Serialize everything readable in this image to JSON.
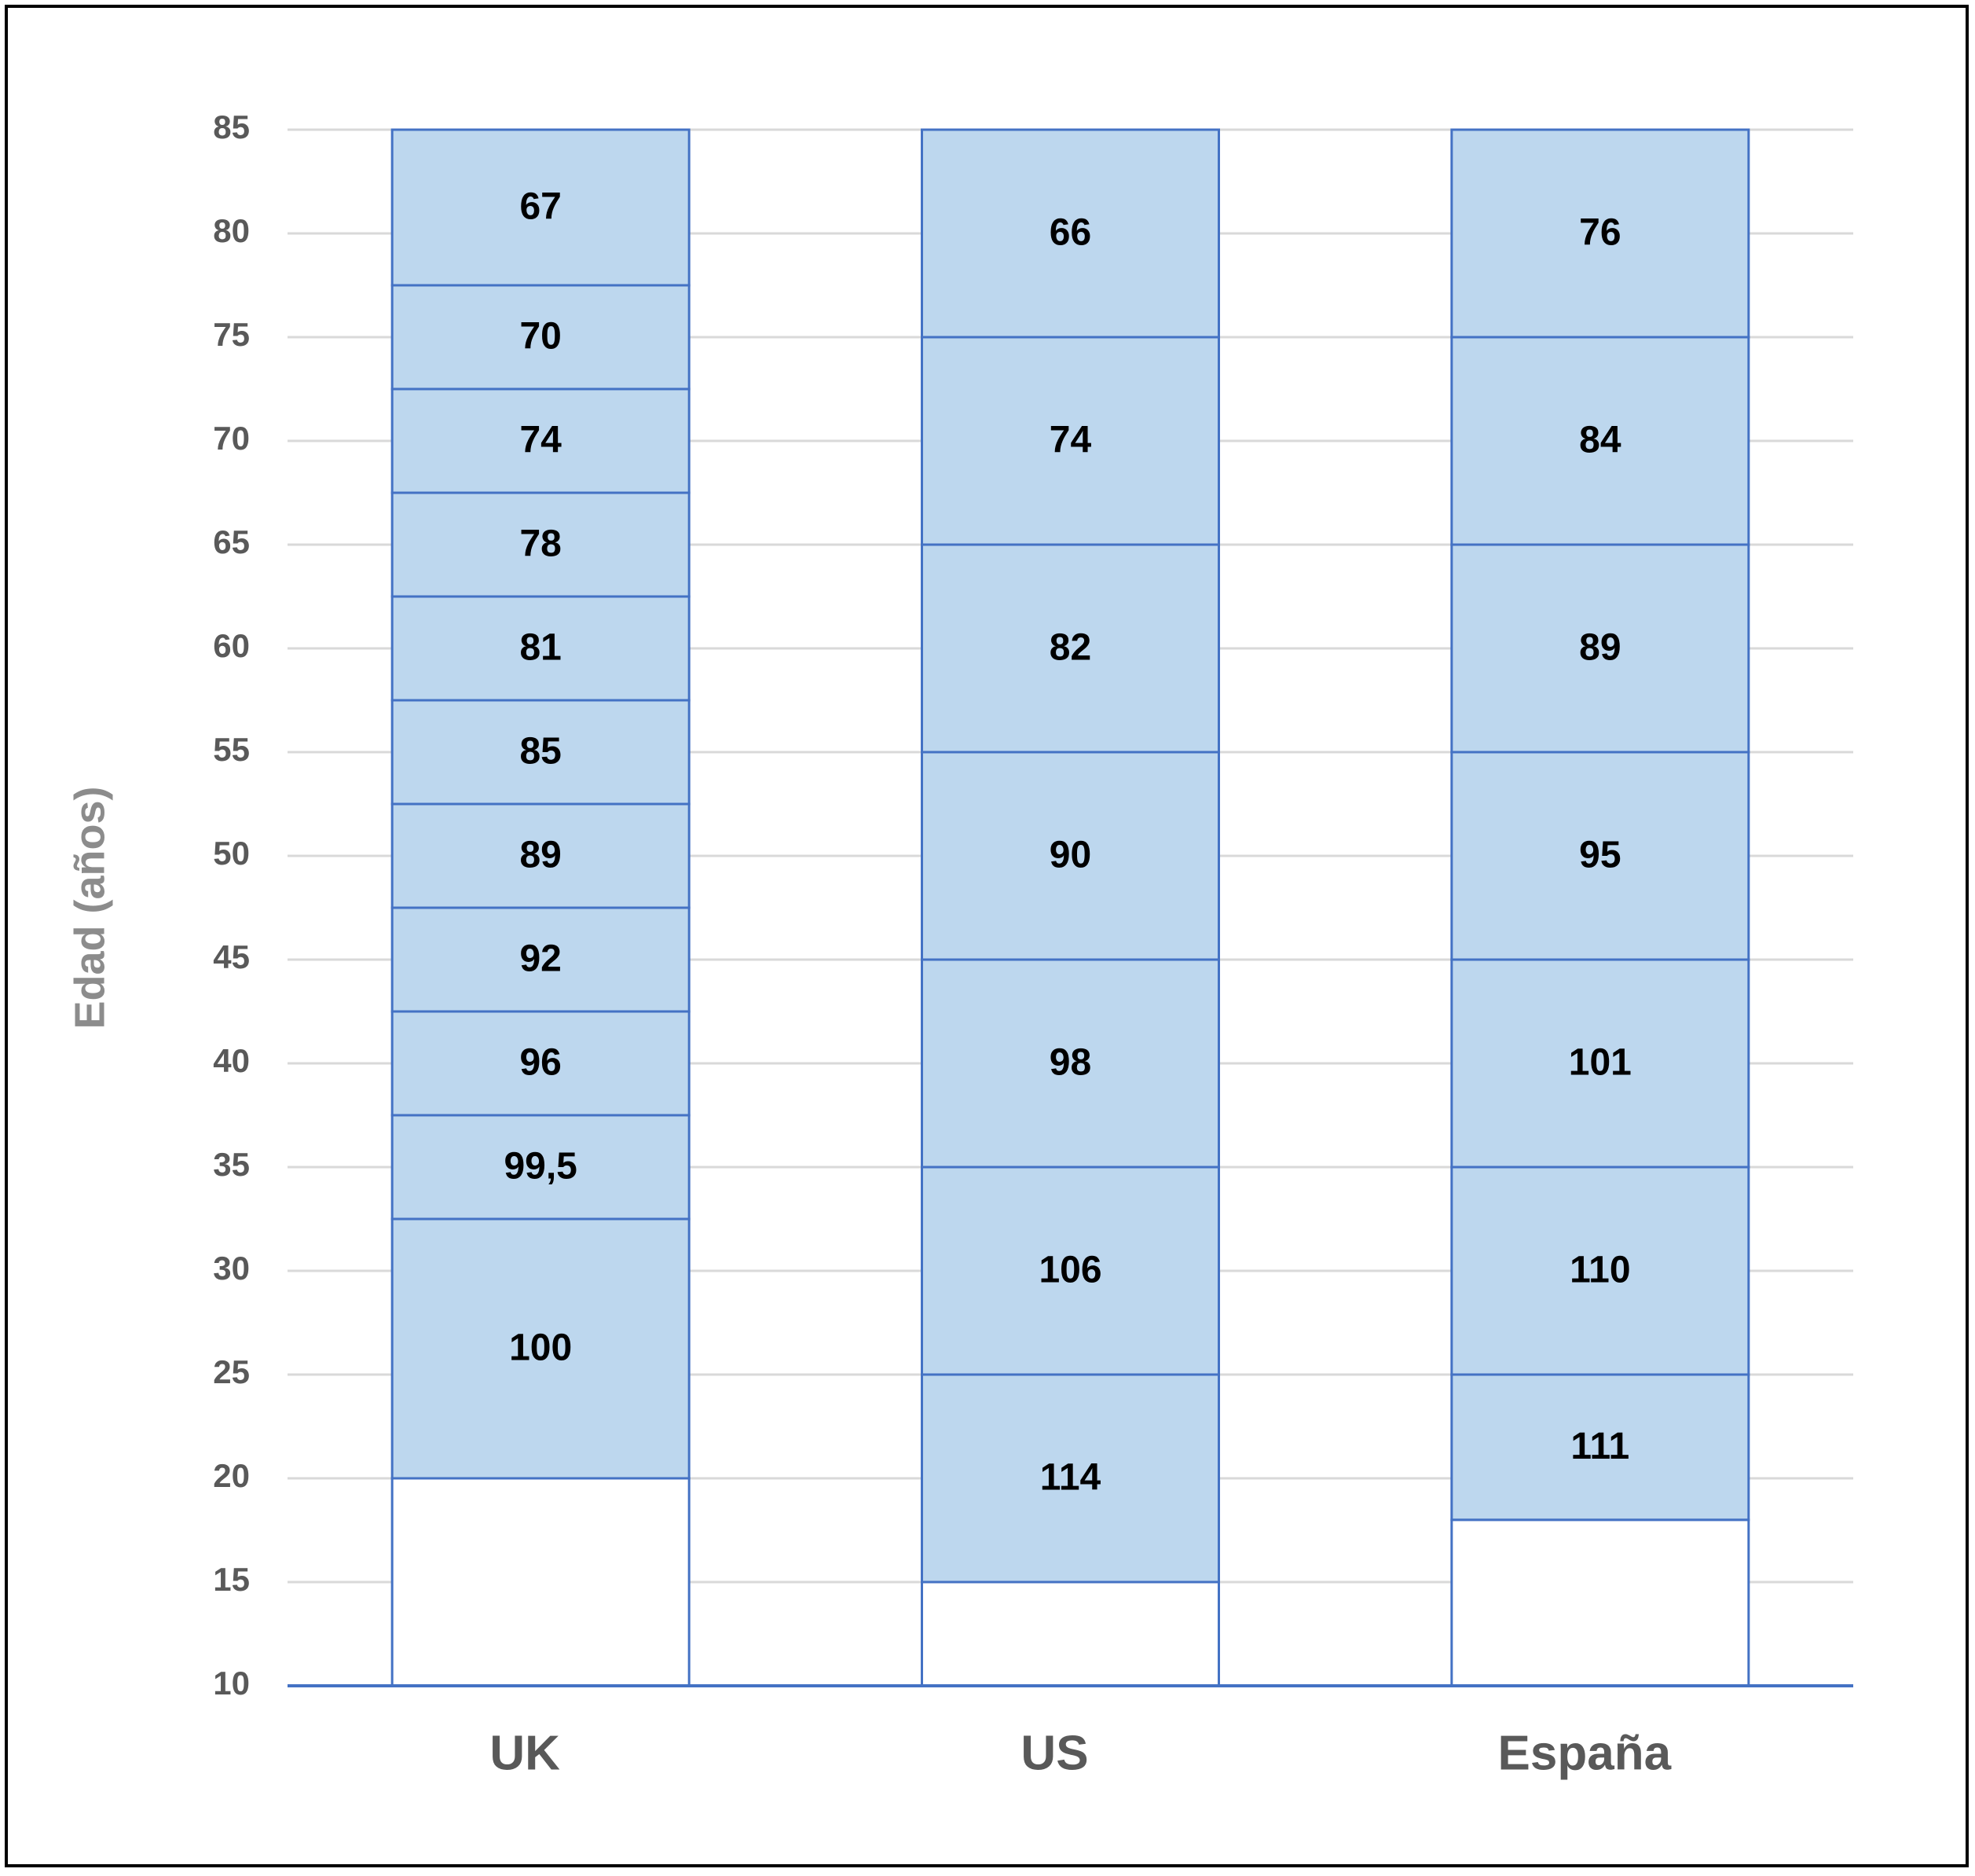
{
  "chart_data": {
    "type": "stacked-range-bar",
    "y_label": "Edad (años)",
    "ylim": [
      10,
      85
    ],
    "yticks": [
      10,
      15,
      20,
      25,
      30,
      35,
      40,
      45,
      50,
      55,
      60,
      65,
      70,
      75,
      80,
      85
    ],
    "grid": true,
    "color": "#bdd7ee",
    "edge_color": "#4472c4",
    "bars": [
      {
        "category": "UK",
        "start": 20,
        "segments": [
          {
            "height": 12.5,
            "value": 100
          },
          {
            "height": 5,
            "value": 99.5,
            "label": "99,5"
          },
          {
            "height": 5,
            "value": 96
          },
          {
            "height": 5,
            "value": 92
          },
          {
            "height": 5,
            "value": 89
          },
          {
            "height": 5,
            "value": 85
          },
          {
            "height": 5,
            "value": 81
          },
          {
            "height": 5,
            "value": 78
          },
          {
            "height": 5,
            "value": 74
          },
          {
            "height": 5,
            "value": 70
          },
          {
            "height": 7.5,
            "value": 67
          }
        ]
      },
      {
        "category": "US",
        "start": 15,
        "segments": [
          {
            "height": 10,
            "value": 114
          },
          {
            "height": 10,
            "value": 106
          },
          {
            "height": 10,
            "value": 98
          },
          {
            "height": 10,
            "value": 90
          },
          {
            "height": 10,
            "value": 82
          },
          {
            "height": 10,
            "value": 74
          },
          {
            "height": 10,
            "value": 66
          }
        ]
      },
      {
        "category": "España",
        "start": 18,
        "segments": [
          {
            "height": 7,
            "value": 111
          },
          {
            "height": 10,
            "value": 110
          },
          {
            "height": 10,
            "value": 101
          },
          {
            "height": 10,
            "value": 95
          },
          {
            "height": 10,
            "value": 89
          },
          {
            "height": 10,
            "value": 84
          },
          {
            "height": 10,
            "value": 76
          }
        ]
      }
    ]
  }
}
